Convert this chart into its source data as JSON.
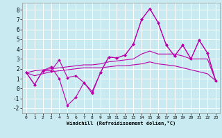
{
  "xlabel": "Windchill (Refroidissement éolien,°C)",
  "ylabel": "",
  "background_color": "#c8eaf0",
  "grid_color": "#ffffff",
  "line_color": "#bb00aa",
  "xlim": [
    -0.5,
    23.5
  ],
  "ylim": [
    -2.5,
    8.7
  ],
  "xtick_labels": [
    "0",
    "1",
    "2",
    "3",
    "4",
    "5",
    "6",
    "7",
    "8",
    "9",
    "10",
    "11",
    "12",
    "13",
    "14",
    "15",
    "16",
    "17",
    "18",
    "19",
    "20",
    "21",
    "22",
    "23"
  ],
  "yticks": [
    -2,
    -1,
    0,
    1,
    2,
    3,
    4,
    5,
    6,
    7,
    8
  ],
  "series": [
    [
      1.6,
      0.4,
      1.8,
      1.8,
      2.9,
      1.1,
      1.3,
      0.6,
      -0.3,
      1.6,
      3.2,
      3.1,
      3.4,
      4.5,
      7.0,
      8.1,
      6.7,
      4.4,
      3.3,
      4.4,
      3.0,
      4.9,
      3.6,
      0.8
    ],
    [
      1.6,
      0.4,
      1.8,
      2.2,
      1.0,
      -1.7,
      -0.9,
      0.6,
      -0.5,
      1.6,
      3.2,
      3.1,
      3.4,
      4.5,
      7.0,
      8.1,
      6.7,
      4.4,
      3.3,
      4.4,
      3.0,
      4.9,
      3.6,
      0.8
    ],
    [
      1.6,
      1.8,
      1.9,
      2.0,
      2.1,
      2.2,
      2.3,
      2.4,
      2.4,
      2.5,
      2.7,
      2.8,
      2.9,
      3.0,
      3.5,
      3.8,
      3.5,
      3.5,
      3.5,
      3.3,
      3.0,
      3.0,
      3.0,
      0.8
    ],
    [
      1.6,
      1.3,
      1.5,
      1.7,
      1.8,
      1.9,
      2.0,
      2.1,
      2.1,
      2.1,
      2.2,
      2.3,
      2.3,
      2.4,
      2.5,
      2.7,
      2.5,
      2.4,
      2.3,
      2.1,
      1.9,
      1.7,
      1.5,
      0.8
    ]
  ]
}
